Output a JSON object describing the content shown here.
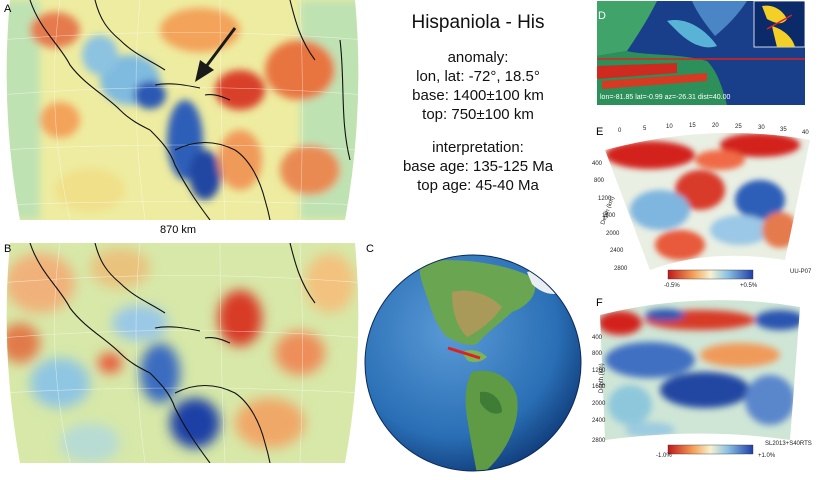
{
  "panel_labels": {
    "a": "A",
    "b": "B",
    "c": "C",
    "d": "D",
    "e": "E",
    "f": "F"
  },
  "scale_label": "870 km",
  "info": {
    "title": "Hispaniola - His",
    "anomaly_heading": "anomaly:",
    "lonlat": "lon, lat: -72°, 18.5°",
    "base": "base: 1400±100 km",
    "top": "top: 750±100 km",
    "interp_heading": "interpretation:",
    "base_age": "base age: 135-125 Ma",
    "top_age": "top age: 45-40 Ma"
  },
  "map_d": {
    "readout": "lon=-81.85 lat=-0.99 az=-26.31 dist=40.00"
  },
  "section_e": {
    "top_ticks": [
      "0",
      "5",
      "10",
      "15",
      "20",
      "25",
      "30",
      "35",
      "40"
    ],
    "depth_ticks": [
      "400",
      "800",
      "1200",
      "1600",
      "2000",
      "2400",
      "2800"
    ],
    "depth_label": "Depth (km)",
    "colorbar_min": "-0.5%",
    "colorbar_max": "+0.5%",
    "model": "UU-P07"
  },
  "section_f": {
    "depth_ticks": [
      "400",
      "800",
      "1200",
      "1600",
      "2000",
      "2400",
      "2800"
    ],
    "depth_label": "Depth (km)",
    "colorbar_min": "-1.0%",
    "colorbar_max": "+1.0%",
    "model": "SL2013+S40RTS"
  },
  "colors": {
    "fast": "#1f3fa6",
    "slow": "#d3231f",
    "neutral": "#f4f0b0",
    "ocean": "#2a6fb5",
    "land": "#5ea04a",
    "arrow": "#1a1a1a",
    "profile": "#e0201c"
  },
  "icons": {
    "arrow": "arrow-pointer-icon"
  }
}
